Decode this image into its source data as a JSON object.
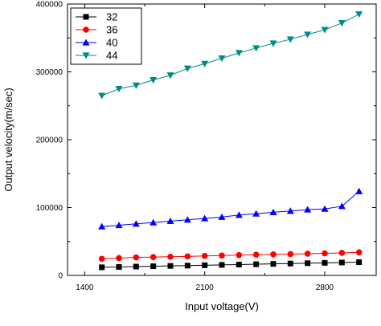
{
  "chart_data": {
    "type": "line",
    "title": "",
    "xlabel": "Input voltage(V)",
    "ylabel": "Output velocity(m/sec)",
    "xlim": [
      1300,
      3100
    ],
    "ylim": [
      0,
      400000
    ],
    "x_ticks": [
      1400,
      2100,
      2800
    ],
    "y_ticks": [
      0,
      100000,
      200000,
      300000,
      400000
    ],
    "x_tick_labels": [
      "1400",
      "2100",
      "2800"
    ],
    "y_tick_labels": [
      "0",
      "100000",
      "200000",
      "300000",
      "400000"
    ],
    "grid": false,
    "legend_position": "top-left",
    "x": [
      1500,
      1600,
      1700,
      1800,
      1900,
      2000,
      2100,
      2200,
      2300,
      2400,
      2500,
      2600,
      2700,
      2800,
      2900,
      3000
    ],
    "series": [
      {
        "name": "32",
        "color": "#000000",
        "marker": "square",
        "values": [
          12000,
          12500,
          13000,
          13500,
          14000,
          14500,
          15000,
          15500,
          16000,
          16500,
          17000,
          17500,
          18000,
          18500,
          19000,
          19500
        ]
      },
      {
        "name": "36",
        "color": "#ff0000",
        "marker": "circle",
        "values": [
          24500,
          25500,
          26500,
          27000,
          27500,
          28000,
          28700,
          29300,
          30000,
          30500,
          31000,
          31500,
          32000,
          32500,
          33200,
          34000
        ]
      },
      {
        "name": "40",
        "color": "#0000ff",
        "marker": "triangle-up",
        "values": [
          72000,
          74000,
          76000,
          78000,
          80000,
          82000,
          84000,
          86000,
          89000,
          91000,
          93000,
          95000,
          97000,
          98000,
          102000,
          124000
        ]
      },
      {
        "name": "44",
        "color": "#008b8b",
        "marker": "triangle-down",
        "values": [
          265000,
          275000,
          280000,
          288000,
          295000,
          305000,
          312000,
          320000,
          328000,
          335000,
          342000,
          348000,
          355000,
          362000,
          372000,
          385000
        ]
      }
    ]
  }
}
